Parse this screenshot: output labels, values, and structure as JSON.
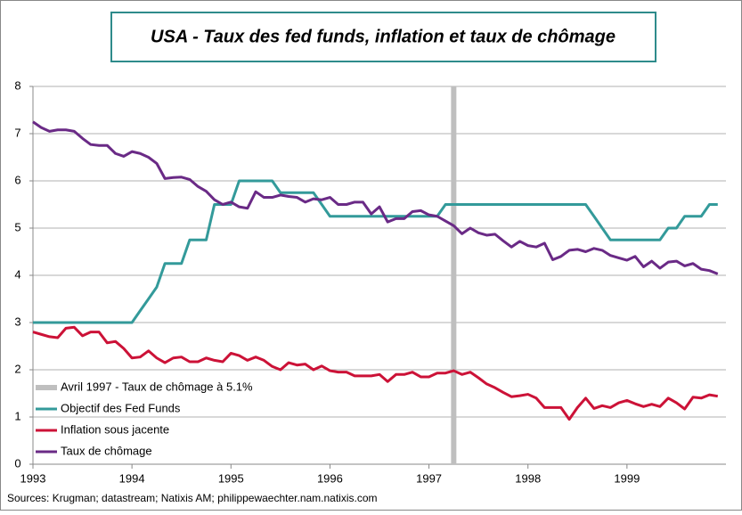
{
  "chart_data": {
    "type": "line",
    "title": "USA - Taux des fed funds, inflation et taux de chômage",
    "source": "Sources: Krugman; datastream; Natixis AM; philippewaechter.nam.natixis.com",
    "x": [
      1993,
      1993.083,
      1993.167,
      1993.25,
      1993.333,
      1993.417,
      1993.5,
      1993.583,
      1993.667,
      1993.75,
      1993.833,
      1993.917,
      1994,
      1994.083,
      1994.167,
      1994.25,
      1994.333,
      1994.417,
      1994.5,
      1994.583,
      1994.667,
      1994.75,
      1994.833,
      1994.917,
      1995,
      1995.083,
      1995.167,
      1995.25,
      1995.333,
      1995.417,
      1995.5,
      1995.583,
      1995.667,
      1995.75,
      1995.833,
      1995.917,
      1996,
      1996.083,
      1996.167,
      1996.25,
      1996.333,
      1996.417,
      1996.5,
      1996.583,
      1996.667,
      1996.75,
      1996.833,
      1996.917,
      1997,
      1997.083,
      1997.167,
      1997.25,
      1997.333,
      1997.417,
      1997.5,
      1997.583,
      1997.667,
      1997.75,
      1997.833,
      1997.917,
      1998,
      1998.083,
      1998.167,
      1998.25,
      1998.333,
      1998.417,
      1998.5,
      1998.583,
      1998.667,
      1998.75,
      1998.833,
      1998.917,
      1999,
      1999.083,
      1999.167,
      1999.25,
      1999.333,
      1999.417,
      1999.5,
      1999.583,
      1999.667,
      1999.75,
      1999.833,
      1999.917
    ],
    "series": [
      {
        "name": "Objectif des Fed Funds",
        "color": "#339a9a",
        "values": [
          3,
          3,
          3,
          3,
          3,
          3,
          3,
          3,
          3,
          3,
          3,
          3,
          3,
          3.25,
          3.5,
          3.75,
          4.25,
          4.25,
          4.25,
          4.75,
          4.75,
          4.75,
          5.5,
          5.5,
          5.5,
          6,
          6,
          6,
          6,
          6,
          5.75,
          5.75,
          5.75,
          5.75,
          5.75,
          5.5,
          5.25,
          5.25,
          5.25,
          5.25,
          5.25,
          5.25,
          5.25,
          5.25,
          5.25,
          5.25,
          5.25,
          5.25,
          5.25,
          5.25,
          5.5,
          5.5,
          5.5,
          5.5,
          5.5,
          5.5,
          5.5,
          5.5,
          5.5,
          5.5,
          5.5,
          5.5,
          5.5,
          5.5,
          5.5,
          5.5,
          5.5,
          5.5,
          5.25,
          5,
          4.75,
          4.75,
          4.75,
          4.75,
          4.75,
          4.75,
          4.75,
          5,
          5,
          5.25,
          5.25,
          5.25,
          5.5,
          5.5
        ]
      },
      {
        "name": "Inflation sous jacente",
        "color": "#cc1237",
        "values": [
          2.8,
          2.75,
          2.7,
          2.68,
          2.88,
          2.9,
          2.72,
          2.8,
          2.8,
          2.57,
          2.6,
          2.45,
          2.25,
          2.27,
          2.4,
          2.25,
          2.15,
          2.25,
          2.27,
          2.17,
          2.17,
          2.25,
          2.2,
          2.17,
          2.35,
          2.3,
          2.2,
          2.27,
          2.2,
          2.07,
          2,
          2.15,
          2.1,
          2.12,
          2,
          2.08,
          1.98,
          1.95,
          1.95,
          1.87,
          1.87,
          1.87,
          1.9,
          1.75,
          1.9,
          1.9,
          1.95,
          1.85,
          1.85,
          1.93,
          1.93,
          1.98,
          1.9,
          1.95,
          1.83,
          1.7,
          1.62,
          1.52,
          1.43,
          1.45,
          1.48,
          1.4,
          1.2,
          1.2,
          1.2,
          0.95,
          1.2,
          1.4,
          1.18,
          1.24,
          1.2,
          1.3,
          1.35,
          1.28,
          1.22,
          1.27,
          1.22,
          1.4,
          1.3,
          1.17,
          1.42,
          1.4,
          1.47,
          1.44
        ]
      },
      {
        "name": "Taux de chômage",
        "color": "#6a2a86",
        "values": [
          7.25,
          7.13,
          7.05,
          7.08,
          7.08,
          7.05,
          6.9,
          6.77,
          6.75,
          6.75,
          6.58,
          6.52,
          6.62,
          6.58,
          6.5,
          6.37,
          6.05,
          6.07,
          6.08,
          6.03,
          5.88,
          5.78,
          5.6,
          5.5,
          5.55,
          5.45,
          5.42,
          5.77,
          5.65,
          5.65,
          5.7,
          5.67,
          5.65,
          5.55,
          5.62,
          5.6,
          5.65,
          5.5,
          5.5,
          5.55,
          5.55,
          5.3,
          5.45,
          5.13,
          5.2,
          5.2,
          5.35,
          5.37,
          5.28,
          5.25,
          5.15,
          5.05,
          4.88,
          5,
          4.9,
          4.85,
          4.87,
          4.73,
          4.6,
          4.72,
          4.63,
          4.6,
          4.68,
          4.33,
          4.4,
          4.53,
          4.55,
          4.5,
          4.57,
          4.53,
          4.42,
          4.37,
          4.32,
          4.4,
          4.18,
          4.3,
          4.15,
          4.28,
          4.3,
          4.2,
          4.25,
          4.13,
          4.1,
          4.03
        ]
      }
    ],
    "marker": {
      "name": "Avril 1997 - Taux de chômage à 5.1%",
      "color": "#bfbfbf",
      "x": 1997.25
    },
    "xlim": [
      1993,
      2000
    ],
    "xticks": [
      1993,
      1994,
      1995,
      1996,
      1997,
      1998,
      1999
    ],
    "ylim": [
      0,
      8
    ],
    "yticks": [
      0,
      1,
      2,
      3,
      4,
      5,
      6,
      7,
      8
    ],
    "grid": true,
    "legend": "bottom-left"
  }
}
